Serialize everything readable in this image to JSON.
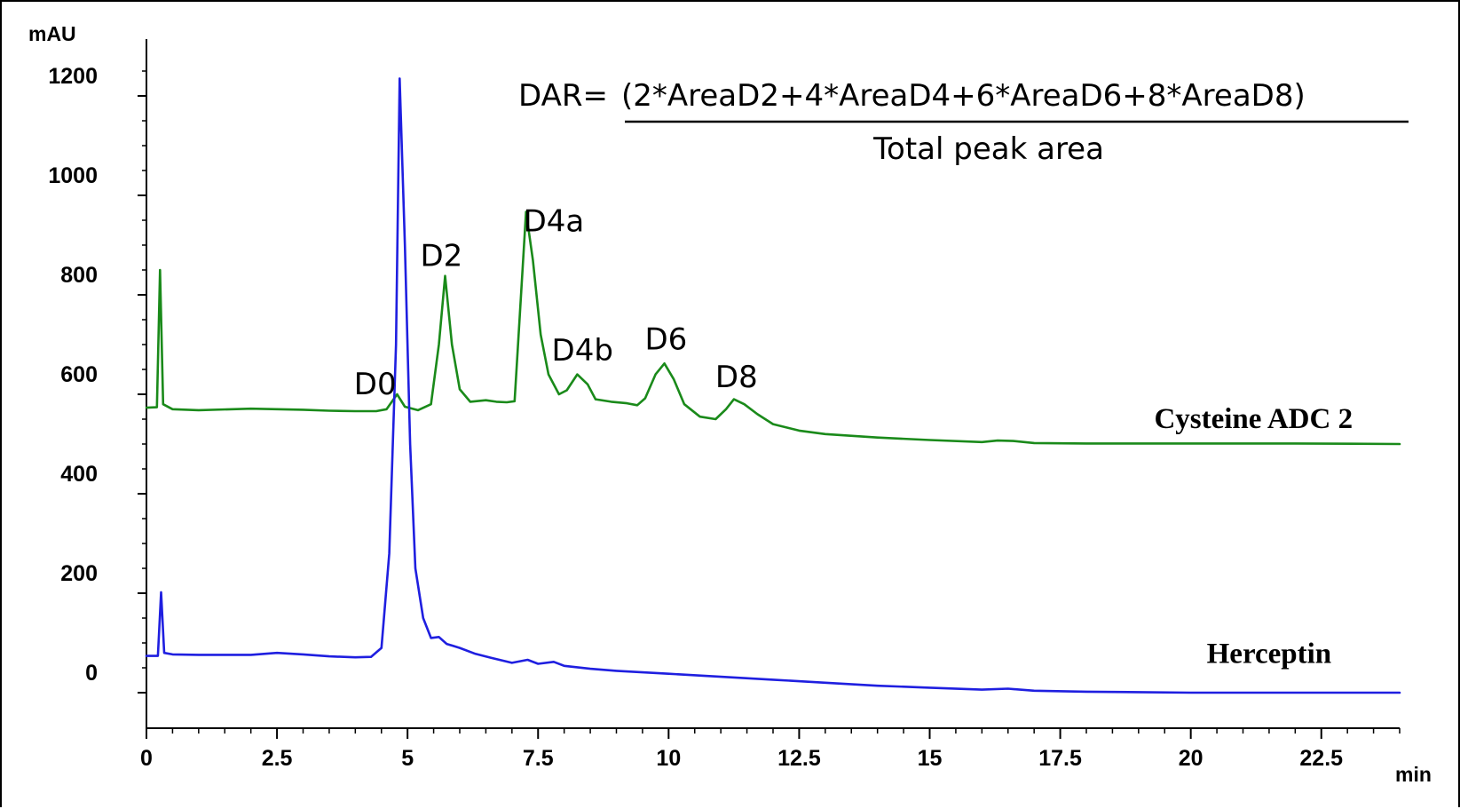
{
  "chart_data": {
    "type": "line",
    "xlabel": "min",
    "ylabel": "mAU",
    "xlim": [
      0,
      24
    ],
    "ylim": [
      -50,
      1280
    ],
    "x_ticks": [
      "0",
      "2.5",
      "5",
      "7.5",
      "10",
      "12.5",
      "15",
      "17.5",
      "20",
      "22.5"
    ],
    "x_tick_values": [
      0,
      2.5,
      5,
      7.5,
      10,
      12.5,
      15,
      17.5,
      20,
      22.5
    ],
    "y_ticks": [
      "0",
      "200",
      "400",
      "600",
      "800",
      "1000",
      "1200"
    ],
    "y_tick_values": [
      0,
      200,
      400,
      600,
      800,
      1000,
      1200
    ],
    "formula": {
      "lhs": "DAR=",
      "numerator": "(2*AreaD2+4*AreaD4+6*AreaD6+8*AreaD8)",
      "denominator": "Total peak area"
    },
    "series": [
      {
        "name": "Cysteine ADC 2",
        "color": "#1a8a1a",
        "points": [
          [
            0,
            573
          ],
          [
            0.2,
            574
          ],
          [
            0.26,
            850
          ],
          [
            0.32,
            580
          ],
          [
            0.5,
            570
          ],
          [
            1,
            568
          ],
          [
            2,
            571
          ],
          [
            2.5,
            570
          ],
          [
            3,
            569
          ],
          [
            3.5,
            567
          ],
          [
            4,
            566
          ],
          [
            4.4,
            566
          ],
          [
            4.6,
            570
          ],
          [
            4.8,
            600
          ],
          [
            4.95,
            575
          ],
          [
            5.2,
            568
          ],
          [
            5.45,
            580
          ],
          [
            5.6,
            700
          ],
          [
            5.72,
            838
          ],
          [
            5.85,
            700
          ],
          [
            6,
            610
          ],
          [
            6.2,
            585
          ],
          [
            6.5,
            588
          ],
          [
            6.7,
            585
          ],
          [
            6.9,
            584
          ],
          [
            7.05,
            586
          ],
          [
            7.15,
            760
          ],
          [
            7.27,
            967
          ],
          [
            7.4,
            870
          ],
          [
            7.55,
            720
          ],
          [
            7.7,
            640
          ],
          [
            7.9,
            600
          ],
          [
            8.05,
            608
          ],
          [
            8.25,
            640
          ],
          [
            8.45,
            620
          ],
          [
            8.6,
            590
          ],
          [
            8.9,
            585
          ],
          [
            9.2,
            582
          ],
          [
            9.4,
            578
          ],
          [
            9.55,
            592
          ],
          [
            9.75,
            640
          ],
          [
            9.92,
            662
          ],
          [
            10.1,
            630
          ],
          [
            10.3,
            580
          ],
          [
            10.6,
            555
          ],
          [
            10.9,
            550
          ],
          [
            11.1,
            570
          ],
          [
            11.25,
            590
          ],
          [
            11.45,
            580
          ],
          [
            11.7,
            560
          ],
          [
            12,
            540
          ],
          [
            12.5,
            527
          ],
          [
            13,
            520
          ],
          [
            14,
            513
          ],
          [
            15,
            508
          ],
          [
            16,
            504
          ],
          [
            16.3,
            507
          ],
          [
            16.6,
            506
          ],
          [
            17,
            502
          ],
          [
            18,
            501
          ],
          [
            20,
            501
          ],
          [
            22,
            501
          ],
          [
            24,
            500
          ]
        ]
      },
      {
        "name": "Herceptin",
        "color": "#1f1fe0",
        "points": [
          [
            0,
            74
          ],
          [
            0.22,
            74
          ],
          [
            0.28,
            202
          ],
          [
            0.34,
            80
          ],
          [
            0.5,
            77
          ],
          [
            1,
            76
          ],
          [
            2,
            76
          ],
          [
            2.5,
            80
          ],
          [
            3,
            77
          ],
          [
            3.5,
            73
          ],
          [
            4,
            71
          ],
          [
            4.3,
            72
          ],
          [
            4.5,
            90
          ],
          [
            4.65,
            280
          ],
          [
            4.78,
            700
          ],
          [
            4.85,
            1235
          ],
          [
            4.95,
            900
          ],
          [
            5.05,
            500
          ],
          [
            5.15,
            250
          ],
          [
            5.3,
            150
          ],
          [
            5.45,
            110
          ],
          [
            5.6,
            112
          ],
          [
            5.75,
            98
          ],
          [
            6,
            90
          ],
          [
            6.3,
            78
          ],
          [
            6.6,
            70
          ],
          [
            7,
            60
          ],
          [
            7.3,
            66
          ],
          [
            7.5,
            58
          ],
          [
            7.8,
            62
          ],
          [
            8,
            54
          ],
          [
            8.5,
            48
          ],
          [
            9,
            44
          ],
          [
            10,
            38
          ],
          [
            11,
            32
          ],
          [
            12,
            26
          ],
          [
            13,
            20
          ],
          [
            14,
            14
          ],
          [
            15,
            10
          ],
          [
            16,
            6
          ],
          [
            16.5,
            8
          ],
          [
            17,
            4
          ],
          [
            18,
            2
          ],
          [
            19,
            1
          ],
          [
            20,
            0
          ],
          [
            22,
            0
          ],
          [
            24,
            0
          ]
        ]
      }
    ],
    "peak_labels": [
      {
        "text": "D0",
        "x": 4.38,
        "y": 600
      },
      {
        "text": "D2",
        "x": 5.65,
        "y": 858
      },
      {
        "text": "D4a",
        "x": 7.8,
        "y": 928
      },
      {
        "text": "D4b",
        "x": 8.35,
        "y": 668
      },
      {
        "text": "D6",
        "x": 9.95,
        "y": 690
      },
      {
        "text": "D8",
        "x": 11.3,
        "y": 614
      }
    ],
    "series_labels": [
      {
        "text": "Cysteine ADC 2",
        "x": 21.2,
        "y": 532
      },
      {
        "text": "Herceptin",
        "x": 21.5,
        "y": 60
      }
    ],
    "grid": false,
    "legend": "none"
  }
}
